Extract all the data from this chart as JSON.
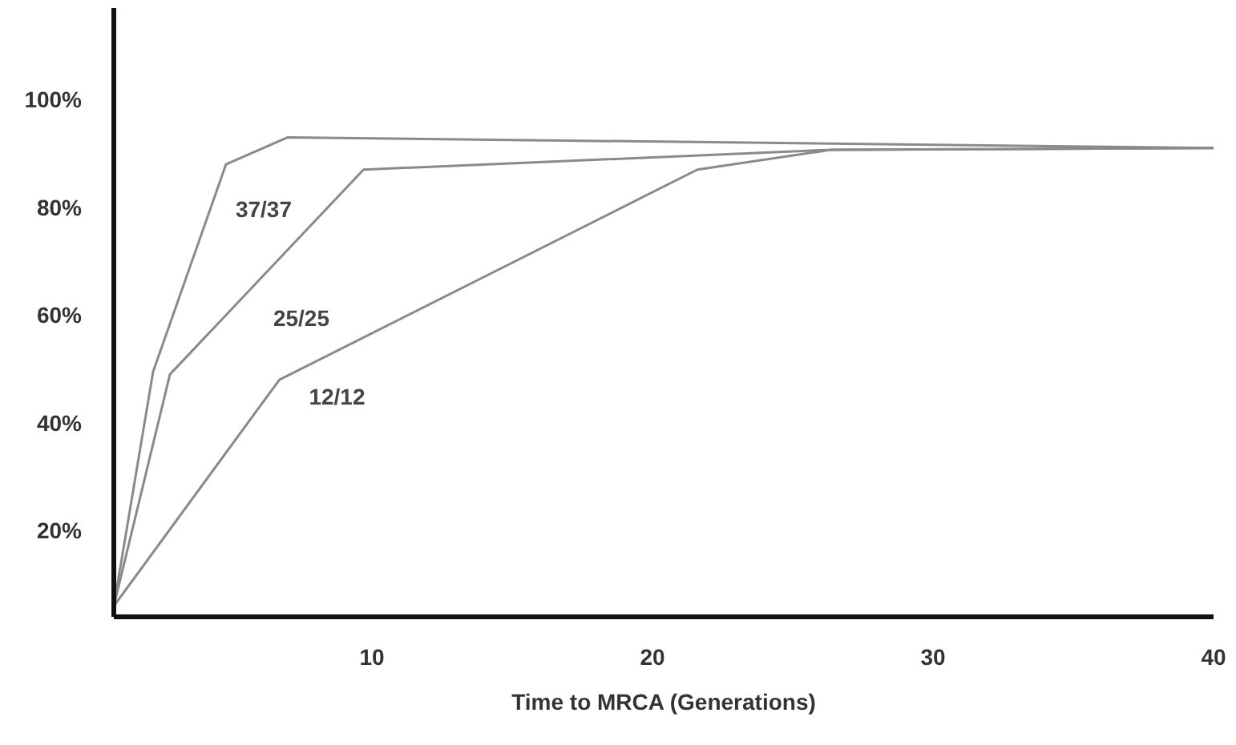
{
  "chart_data": {
    "type": "line",
    "xlabel": "Time to MRCA (Generations)",
    "xlim": [
      0.8,
      40
    ],
    "xticks": [
      10,
      20,
      30,
      40
    ],
    "ylim": [
      4,
      117
    ],
    "yticks": [
      {
        "value": 20,
        "label": "20%"
      },
      {
        "value": 40,
        "label": "40%"
      },
      {
        "value": 60,
        "label": "60%"
      },
      {
        "value": 80,
        "label": "80%"
      },
      {
        "value": 100,
        "label": "100%"
      }
    ],
    "grid": false,
    "marker": "none",
    "line_style": "solid",
    "series": [
      {
        "name": "37/37",
        "color": "#8a8a8a",
        "x": [
          0.8,
          2.2,
          4.8,
          7.0,
          40
        ],
        "values": [
          6,
          49.5,
          88,
          93,
          91
        ]
      },
      {
        "name": "25/25",
        "color": "#8a8a8a",
        "x": [
          0.8,
          2.8,
          9.7,
          26.4,
          40
        ],
        "values": [
          6,
          49,
          87,
          90.7,
          91
        ]
      },
      {
        "name": "12/12",
        "color": "#8a8a8a",
        "x": [
          0.8,
          6.7,
          21.6,
          26.4,
          40
        ],
        "values": [
          6,
          48,
          87,
          90.7,
          91
        ]
      }
    ]
  }
}
